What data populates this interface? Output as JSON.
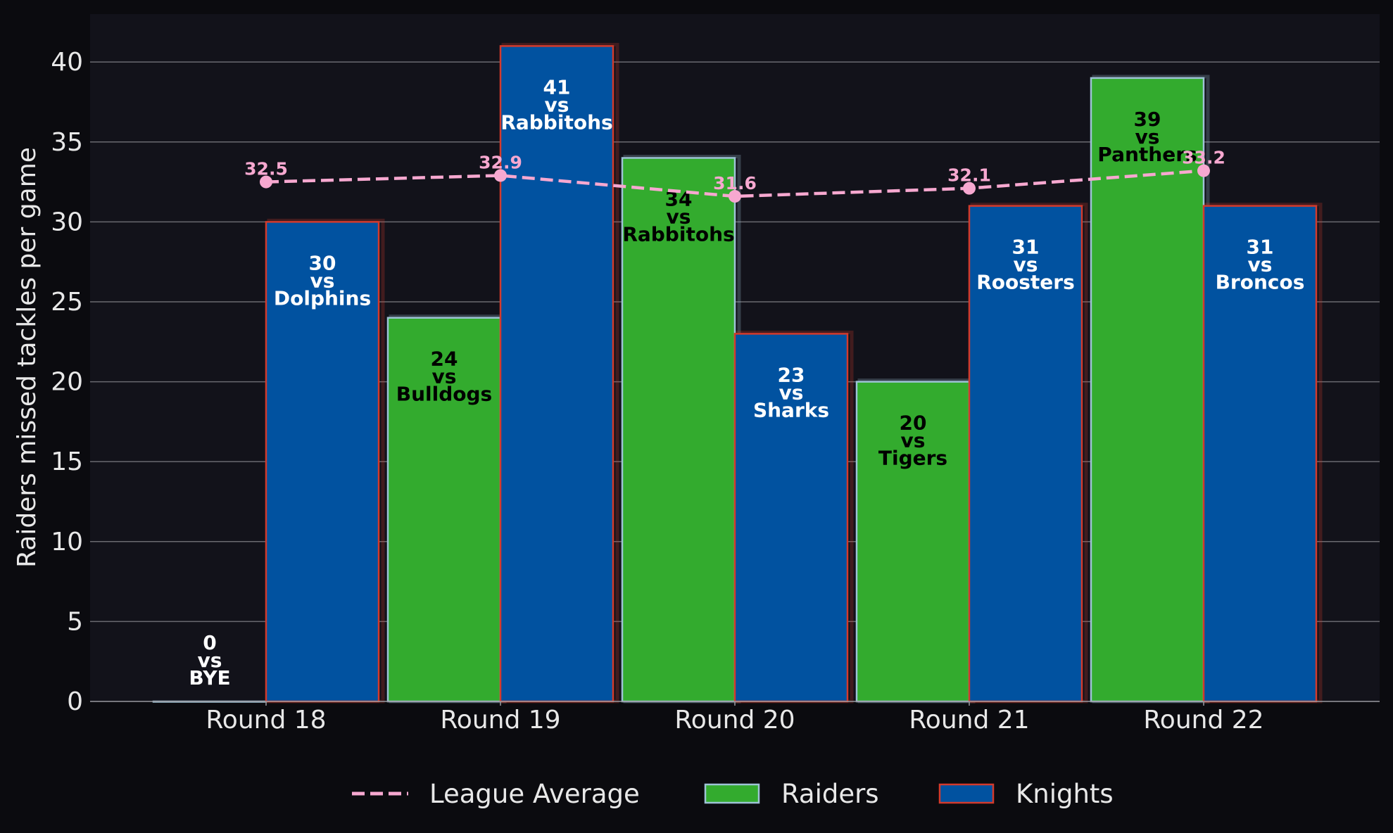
{
  "chart_data": {
    "type": "bar",
    "ylabel": "Raiders missed tackles per game",
    "ylim": [
      0,
      43
    ],
    "yticks": [
      0,
      5,
      10,
      15,
      20,
      25,
      30,
      35,
      40
    ],
    "categories": [
      "Round 18",
      "Round 19",
      "Round 20",
      "Round 21",
      "Round 22"
    ],
    "grid": "horizontal",
    "legend_position": "bottom-center",
    "series": [
      {
        "name": "Raiders",
        "color": "#33ab2e",
        "edge_color": "#9ec3d6",
        "values": [
          0,
          24,
          34,
          20,
          39
        ],
        "opponents": [
          "BYE",
          "Bulldogs",
          "Rabbitohs",
          "Tigers",
          "Panthers"
        ],
        "label_color": "#000000"
      },
      {
        "name": "Knights",
        "color": "#0152a0",
        "edge_color": "#d33a2c",
        "values": [
          30,
          41,
          23,
          31,
          31
        ],
        "opponents": [
          "Dolphins",
          "Rabbitohs",
          "Sharks",
          "Roosters",
          "Broncos"
        ],
        "label_color": "#ffffff"
      }
    ],
    "league_average": {
      "name": "League Average",
      "color": "#f7a8d0",
      "values": [
        32.5,
        32.9,
        31.6,
        32.1,
        33.2
      ],
      "labels": [
        "32.5",
        "32.9",
        "31.6",
        "32.1",
        "33.2"
      ]
    },
    "vs_text": "vs",
    "bye_label_color": "#ffffff"
  }
}
